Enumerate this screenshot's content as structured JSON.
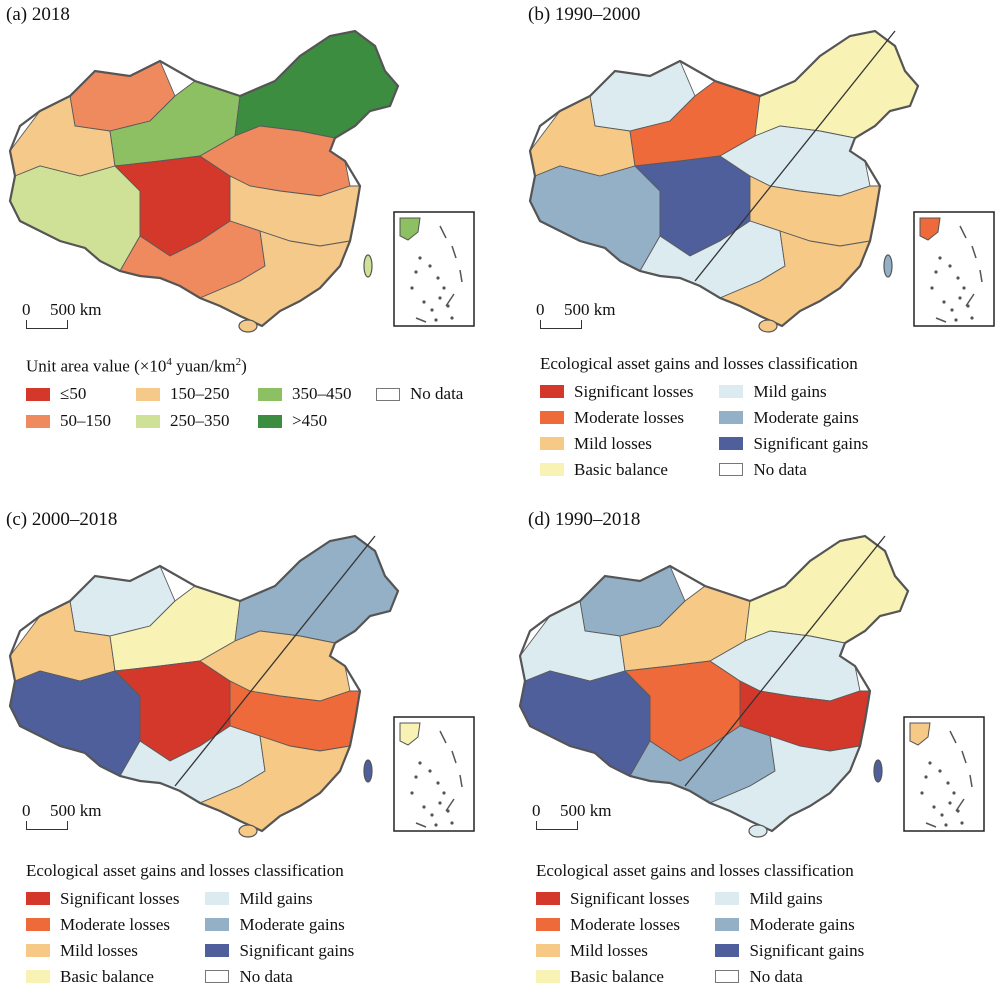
{
  "panels": {
    "a": {
      "title": "(a) 2018",
      "scale": {
        "zero": "0",
        "label": "500 km"
      }
    },
    "b": {
      "title": "(b) 1990–2000",
      "scale": {
        "zero": "0",
        "label": "500 km"
      }
    },
    "c": {
      "title": "(c) 2000–2018",
      "scale": {
        "zero": "0",
        "label": "500 km"
      }
    },
    "d": {
      "title": "(d) 1990–2018",
      "scale": {
        "zero": "0",
        "label": "500 km"
      }
    }
  },
  "legend_value": {
    "title_main": "Unit area value (×10",
    "title_sup": "4",
    "title_mid": " yuan/km",
    "title_sup2": "2",
    "title_end": ")",
    "items": [
      {
        "label": "≤50",
        "color": "#d4382b"
      },
      {
        "label": "150–250",
        "color": "#f4c98a"
      },
      {
        "label": "350–450",
        "color": "#8cc063"
      },
      {
        "label": "50–150",
        "color": "#ee8a5e"
      },
      {
        "label": "250–350",
        "color": "#cfe197"
      },
      {
        "label": ">450",
        "color": "#3c8d3f"
      },
      {
        "label": "No data",
        "color": "#ffffff"
      }
    ]
  },
  "legend_change": {
    "title": "Ecological asset gains and losses classification",
    "items": [
      {
        "label": "Significant losses",
        "color": "#d4382b"
      },
      {
        "label": "Mild gains",
        "color": "#dcebf0"
      },
      {
        "label": "Moderate losses",
        "color": "#ee6a3a"
      },
      {
        "label": "Moderate gains",
        "color": "#94b0c6"
      },
      {
        "label": "Mild losses",
        "color": "#f6c987"
      },
      {
        "label": "Significant gains",
        "color": "#4f5f9c"
      },
      {
        "label": "Basic balance",
        "color": "#f8f3b4"
      },
      {
        "label": "No data",
        "color": "#ffffff"
      }
    ]
  },
  "map_palettes": {
    "a": [
      "#ee8a5e",
      "#f4c98a",
      "#cfe197",
      "#8cc063",
      "#3c8d3f",
      "#d4382b",
      "#ee8a5e",
      "#f4c98a"
    ],
    "b": [
      "#dcebf0",
      "#f6c987",
      "#94b0c6",
      "#ee6a3a",
      "#f8f3b4",
      "#4f5f9c",
      "#dcebf0",
      "#f6c987"
    ],
    "c": [
      "#dcebf0",
      "#f6c987",
      "#4f5f9c",
      "#f8f3b4",
      "#94b0c6",
      "#d4382b",
      "#f6c987",
      "#ee6a3a"
    ],
    "d": [
      "#94b0c6",
      "#dcebf0",
      "#4f5f9c",
      "#f6c987",
      "#f8f3b4",
      "#ee6a3a",
      "#dcebf0",
      "#d4382b"
    ]
  }
}
